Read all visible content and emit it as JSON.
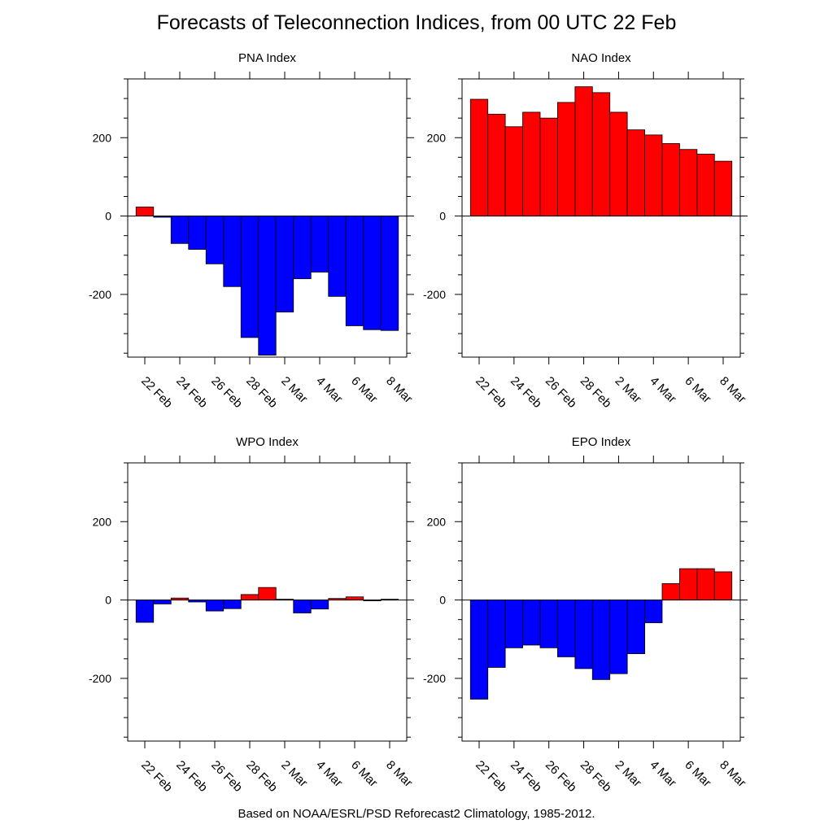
{
  "title": "Forecasts of Teleconnection Indices, from 00 UTC 22 Feb",
  "footer": "Based on NOAA/ESRL/PSD Reforecast2 Climatology, 1985-2012.",
  "colors": {
    "positive": "#ff0000",
    "negative": "#0000ff",
    "outline": "#000000"
  },
  "chart_data": [
    {
      "type": "bar",
      "title": "PNA Index",
      "xlabel": "",
      "ylabel": "",
      "ylim": [
        -360,
        350
      ],
      "yticks": [
        -200,
        0,
        200
      ],
      "tick_labels": [
        "22 Feb",
        "24 Feb",
        "26 Feb",
        "28 Feb",
        "2 Mar",
        "4 Mar",
        "6 Mar",
        "8 Mar"
      ],
      "values": [
        23,
        -3,
        -70,
        -85,
        -122,
        -180,
        -310,
        -355,
        -245,
        -160,
        -143,
        -205,
        -280,
        -290,
        -292
      ],
      "grid": false
    },
    {
      "type": "bar",
      "title": "NAO Index",
      "xlabel": "",
      "ylabel": "",
      "ylim": [
        -360,
        350
      ],
      "yticks": [
        -200,
        0,
        200
      ],
      "tick_labels": [
        "22 Feb",
        "24 Feb",
        "26 Feb",
        "28 Feb",
        "2 Mar",
        "4 Mar",
        "6 Mar",
        "8 Mar"
      ],
      "values": [
        298,
        260,
        228,
        265,
        250,
        290,
        330,
        315,
        265,
        220,
        207,
        185,
        170,
        158,
        140
      ],
      "grid": false
    },
    {
      "type": "bar",
      "title": "WPO Index",
      "xlabel": "",
      "ylabel": "",
      "ylim": [
        -360,
        350
      ],
      "yticks": [
        -200,
        0,
        200
      ],
      "tick_labels": [
        "22 Feb",
        "24 Feb",
        "26 Feb",
        "28 Feb",
        "2 Mar",
        "4 Mar",
        "6 Mar",
        "8 Mar"
      ],
      "values": [
        -57,
        -10,
        5,
        -5,
        -28,
        -22,
        14,
        32,
        2,
        -33,
        -23,
        4,
        8,
        -2,
        2
      ],
      "grid": false
    },
    {
      "type": "bar",
      "title": "EPO Index",
      "xlabel": "",
      "ylabel": "",
      "ylim": [
        -360,
        350
      ],
      "yticks": [
        -200,
        0,
        200
      ],
      "tick_labels": [
        "22 Feb",
        "24 Feb",
        "26 Feb",
        "28 Feb",
        "2 Mar",
        "4 Mar",
        "6 Mar",
        "8 Mar"
      ],
      "values": [
        -253,
        -172,
        -122,
        -115,
        -122,
        -145,
        -175,
        -203,
        -188,
        -137,
        -58,
        42,
        80,
        80,
        72
      ],
      "grid": false
    }
  ]
}
